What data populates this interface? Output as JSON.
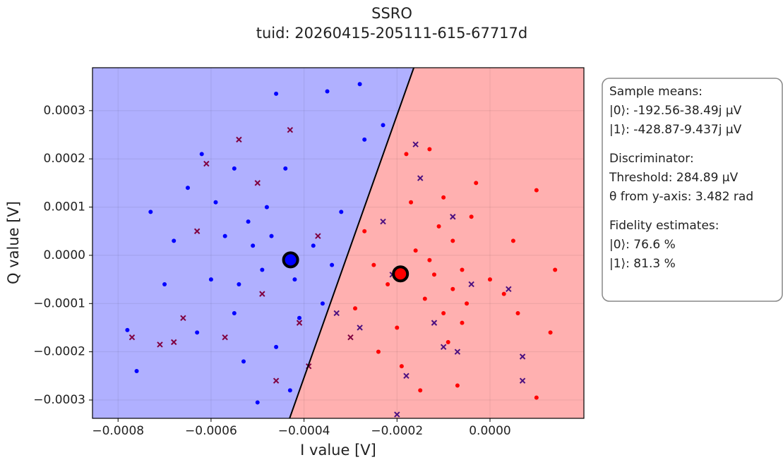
{
  "chart_data": {
    "type": "scatter",
    "title": "SSRO",
    "subtitle": "tuid: 20260415-205111-615-67717d",
    "xlabel": "I value [V]",
    "ylabel": "Q value [V]",
    "xlim": [
      -0.000855,
      0.000202
    ],
    "ylim": [
      -0.000338,
      0.000389
    ],
    "xticks": [
      {
        "value": -0.0008,
        "label": "−0.0008"
      },
      {
        "value": -0.0006,
        "label": "−0.0006"
      },
      {
        "value": -0.0004,
        "label": "−0.0004"
      },
      {
        "value": -0.0002,
        "label": "−0.0002"
      },
      {
        "value": 0,
        "label": "0.0000"
      }
    ],
    "yticks": [
      {
        "value": -0.0003,
        "label": "−0.0003"
      },
      {
        "value": -0.0002,
        "label": "−0.0002"
      },
      {
        "value": -0.0001,
        "label": "−0.0001"
      },
      {
        "value": 0,
        "label": "0.0000"
      },
      0.0001,
      0.0002,
      0.0003
    ],
    "grid": true,
    "regions": {
      "left_color": "#b0b0ff",
      "right_color": "#ffb0b0"
    },
    "boundary": {
      "x": [
        -0.0001639,
        -0.000431
      ],
      "y": [
        0.000389,
        -0.000338
      ],
      "color": "#000000"
    },
    "series": [
      {
        "color": "#0000ff",
        "marker": "o",
        "x": [
          -0.00051,
          -0.00046,
          -0.00035,
          -0.00028,
          -0.00076,
          -0.00078,
          -0.0005,
          -0.00043,
          -0.00065,
          -0.00055,
          -0.00048,
          -0.0006,
          -0.00055,
          -0.00042,
          -0.00038,
          -0.00032,
          -0.00027,
          -0.00023,
          -0.00068,
          -0.0007,
          -0.00063,
          -0.00046,
          -0.00052,
          -0.00049,
          -0.00057,
          -0.00044,
          -0.00036,
          -0.00062,
          -0.00073,
          -0.00053,
          -0.00041,
          -0.00034,
          -0.00059,
          -0.00047,
          -0.00054
        ],
        "y": [
          2e-05,
          0.000335,
          0.00034,
          0.000355,
          -0.00024,
          -0.000155,
          -0.000305,
          -0.00028,
          0.00014,
          0.00018,
          0.0001,
          -5e-05,
          -0.00012,
          -5e-05,
          2e-05,
          9e-05,
          0.00024,
          0.00027,
          3e-05,
          -6e-05,
          -0.00016,
          -0.00019,
          7e-05,
          -3e-05,
          4e-05,
          0.00018,
          -0.0001,
          0.00021,
          9e-05,
          -0.00022,
          -0.00013,
          -2e-05,
          0.00011,
          4e-05,
          -6e-05
        ]
      },
      {
        "color": "#ff0000",
        "marker": "o",
        "x": [
          -0.00012,
          -0.0001,
          -0.00016,
          -8e-05,
          -0.0002,
          -5e-05,
          0.0001,
          0.0001,
          0.00013,
          0.00014,
          -0.00018,
          -0.00013,
          -0.00024,
          -0.00015,
          -7e-05,
          -0.00027,
          -0.00029,
          -4e-05,
          0,
          3e-05,
          -0.00014,
          -0.00011,
          -6e-05,
          -0.00022,
          -0.00017,
          -9e-05,
          -3e-05,
          5e-05,
          -0.00025,
          -0.00019,
          -8e-05,
          -0.00013,
          -6e-05,
          6e-05,
          -0.0001
        ],
        "y": [
          -4e-05,
          -0.00012,
          1e-05,
          3e-05,
          -0.00015,
          -0.0001,
          0.000135,
          -0.000295,
          -0.00016,
          -3e-05,
          0.00021,
          0.00022,
          -0.0002,
          -0.00028,
          -0.00027,
          5e-05,
          -0.00011,
          8e-05,
          -5e-05,
          -8e-05,
          -9e-05,
          6e-05,
          -3e-05,
          -6e-05,
          0.00011,
          -0.00018,
          0.00015,
          3e-05,
          -2e-05,
          -0.00023,
          -7e-05,
          -1e-05,
          -0.00014,
          -0.00012,
          0.00012
        ]
      },
      {
        "color": "#800040",
        "marker": "x",
        "x": [
          -0.00077,
          -0.00071,
          -0.00068,
          -0.00054,
          -0.00043,
          -0.00061,
          -0.00049,
          -0.00039,
          -0.00046,
          -0.00063,
          -0.00057,
          -0.00037,
          -0.0005,
          -0.00066,
          -0.00041,
          -0.0003
        ],
        "y": [
          -0.00017,
          -0.000185,
          -0.00018,
          0.00024,
          0.00026,
          0.00019,
          -8e-05,
          -0.00023,
          -0.00026,
          5e-05,
          -0.00017,
          4e-05,
          0.00015,
          -0.00013,
          -0.00014,
          -0.00017
        ]
      },
      {
        "color": "#4b1080",
        "marker": "x",
        "x": [
          -0.00015,
          -0.00023,
          -0.0001,
          -0.00018,
          -7e-05,
          7e-05,
          7e-05,
          -0.00021,
          -0.00012,
          -4e-05,
          -0.00028,
          -0.00016,
          4e-05,
          -8e-05,
          -0.00033,
          -0.0002
        ],
        "y": [
          0.00016,
          7e-05,
          -0.00019,
          -0.00025,
          -0.0002,
          -0.00021,
          -0.00026,
          -4e-05,
          -0.00014,
          -6e-05,
          -0.00015,
          0.00023,
          -7e-05,
          8e-05,
          -0.00012,
          -0.00033
        ]
      }
    ],
    "means": [
      {
        "x": -0.00019256,
        "y": -3.849e-05,
        "color": "#ff0000"
      },
      {
        "x": -0.00042887,
        "y": -9.437e-06,
        "color": "#0000ff"
      }
    ],
    "textbox": [
      [
        "Sample means:",
        "|0⟩: -192.56-38.49j μV",
        "|1⟩: -428.87-9.437j μV"
      ],
      [
        "Discriminator:",
        "Threshold: 284.89 μV",
        "θ from y-axis: 3.482 rad"
      ],
      [
        "Fidelity estimates:",
        "|0⟩: 76.6 %",
        "|1⟩: 81.3 %"
      ]
    ]
  }
}
